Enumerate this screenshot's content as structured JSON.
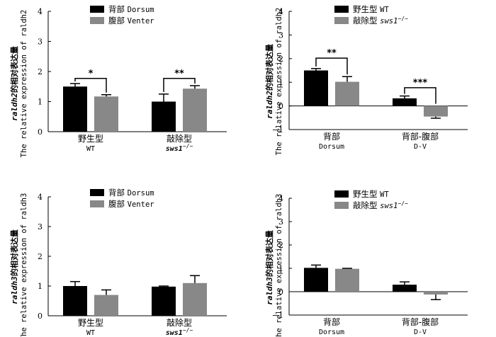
{
  "chart_data": [
    {
      "id": "p1",
      "type": "bar",
      "ylabel_gene": "raldh2",
      "ylabel_cn": "的相对表达量",
      "ylabel_en": "The relative expression of raldh2",
      "ylim": [
        0,
        4
      ],
      "yticks": [
        0,
        1,
        2,
        3,
        4
      ],
      "legend_position": "top-center",
      "categories": [
        {
          "cn": "野生型",
          "en": "WT"
        },
        {
          "cn": "敲除型",
          "en": "sws1",
          "sup": "−/−"
        }
      ],
      "series": [
        {
          "name_cn": "背部",
          "name_en": "Dorsum",
          "color": "#000000",
          "values": [
            1.5,
            1.0
          ],
          "errors": [
            0.1,
            0.25
          ]
        },
        {
          "name_cn": "腹部",
          "name_en": "Venter",
          "color": "#888888",
          "values": [
            1.17,
            1.43
          ],
          "errors": [
            0.06,
            0.1
          ]
        }
      ],
      "significance": [
        {
          "category": 0,
          "label": "*",
          "level": 1.77
        },
        {
          "category": 1,
          "label": "**",
          "level": 1.77
        }
      ]
    },
    {
      "id": "p2",
      "type": "bar",
      "ylabel_gene": "raldh2",
      "ylabel_cn": "的相对表达量",
      "ylabel_en": "The relative expression of raldh2",
      "ylim": [
        -1,
        4
      ],
      "yticks": [
        -1,
        0,
        1,
        2,
        3,
        4
      ],
      "legend_position": "top-center",
      "categories": [
        {
          "cn": "背部",
          "en": "Dorsum"
        },
        {
          "cn": "背部-腹部",
          "en": "D-V"
        }
      ],
      "series": [
        {
          "name_cn": "野生型",
          "name_en": "WT",
          "color": "#000000",
          "values": [
            1.5,
            0.32
          ],
          "errors": [
            0.08,
            0.1
          ]
        },
        {
          "name_cn": "敲除型",
          "name_en": "sws1",
          "name_sup": "−/−",
          "color": "#888888",
          "values": [
            1.02,
            -0.45
          ],
          "errors": [
            0.22,
            0.07
          ]
        }
      ],
      "significance": [
        {
          "category": 0,
          "label": "**",
          "level": 2.02
        },
        {
          "category": 1,
          "label": "***",
          "level": 0.77
        }
      ]
    },
    {
      "id": "p3",
      "type": "bar",
      "ylabel_gene": "raldh3",
      "ylabel_cn": "的相对表达量",
      "ylabel_en": "The relative expression of raldh3",
      "ylim": [
        0,
        4
      ],
      "yticks": [
        0,
        1,
        2,
        3,
        4
      ],
      "legend_position": "top-center",
      "categories": [
        {
          "cn": "野生型",
          "en": "WT"
        },
        {
          "cn": "敲除型",
          "en": "sws1",
          "sup": "−/−"
        }
      ],
      "series": [
        {
          "name_cn": "背部",
          "name_en": "Dorsum",
          "color": "#000000",
          "values": [
            1.0,
            0.98
          ],
          "errors": [
            0.15,
            0.02
          ]
        },
        {
          "name_cn": "腹部",
          "name_en": "Venter",
          "color": "#888888",
          "values": [
            0.7,
            1.1
          ],
          "errors": [
            0.17,
            0.25
          ]
        }
      ],
      "significance": []
    },
    {
      "id": "p4",
      "type": "bar",
      "ylabel_gene": "raldh3",
      "ylabel_cn": "的相对表达量",
      "ylabel_en": "The relative expression of raldh3",
      "ylim": [
        -1,
        4
      ],
      "yticks": [
        -1,
        0,
        1,
        2,
        3,
        4
      ],
      "legend_position": "top-center",
      "categories": [
        {
          "cn": "背部",
          "en": "Dorsum"
        },
        {
          "cn": "背部-腹部",
          "en": "D-V"
        }
      ],
      "series": [
        {
          "name_cn": "野生型",
          "name_en": "WT",
          "color": "#000000",
          "values": [
            1.02,
            0.3
          ],
          "errors": [
            0.12,
            0.12
          ]
        },
        {
          "name_cn": "敲除型",
          "name_en": "sws1",
          "name_sup": "−/−",
          "color": "#888888",
          "values": [
            0.98,
            -0.12
          ],
          "errors": [
            0.02,
            0.22
          ]
        }
      ],
      "significance": []
    }
  ]
}
